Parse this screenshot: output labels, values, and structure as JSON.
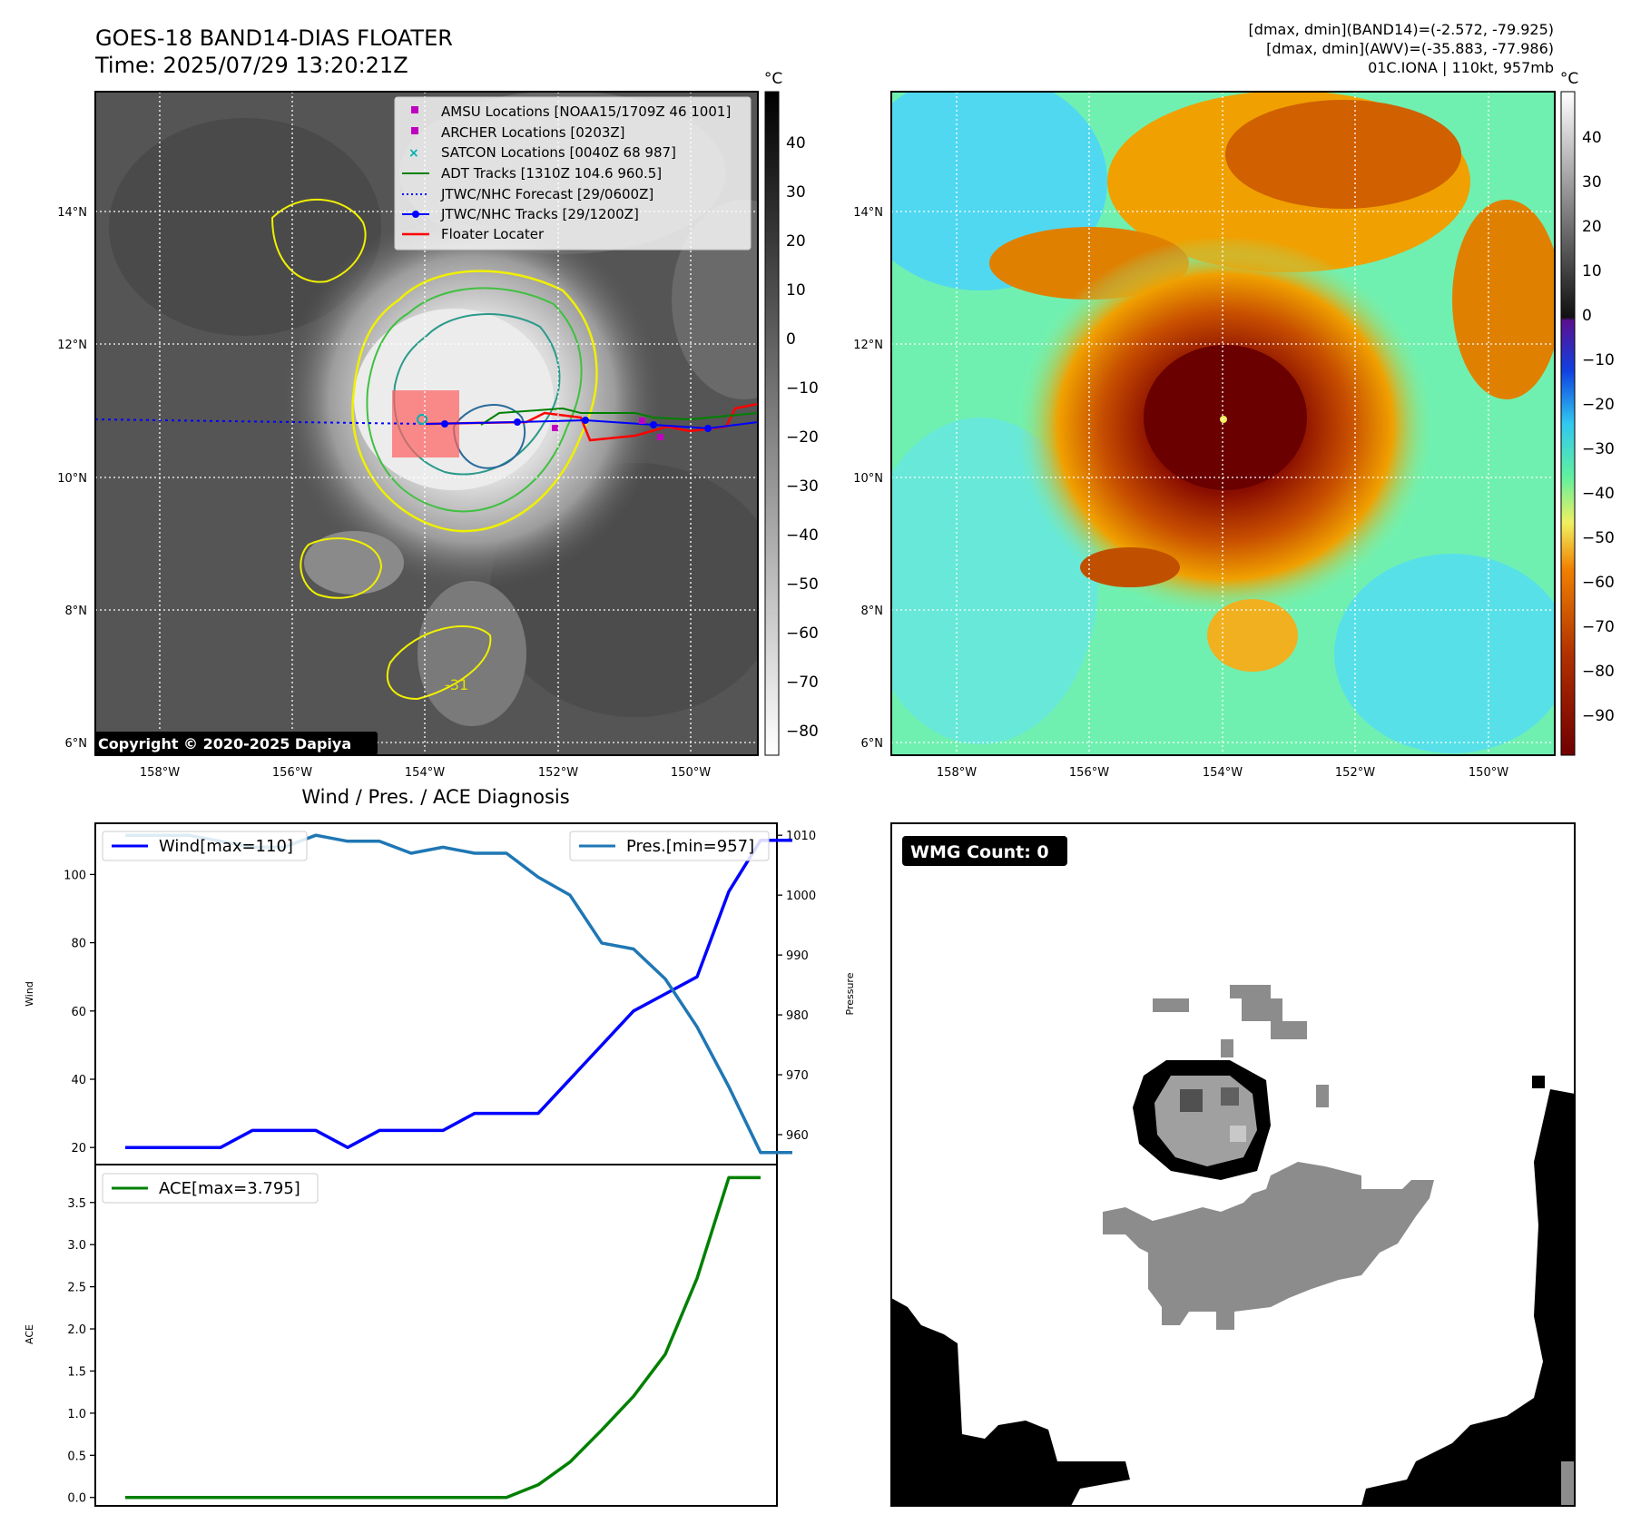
{
  "header": {
    "title_line1": "GOES-18 BAND14-DIAS FLOATER",
    "title_line2": "Time: 2025/07/29 13:20:21Z",
    "info_line1": "[dmax, dmin](BAND14)=(-2.572, -79.925)",
    "info_line2": "[dmax, dmin](AWV)=(-35.883, -77.986)",
    "info_line3": "01C.IONA | 110kt, 957mb"
  },
  "maps": {
    "lat_ticks": [
      "14°N",
      "12°N",
      "10°N",
      "8°N",
      "6°N"
    ],
    "lon_ticks": [
      "158°W",
      "156°W",
      "154°W",
      "152°W",
      "150°W"
    ],
    "copyright": "Copyright © 2020-2025 Dapiya",
    "contour_label": "-31",
    "colorbar_unit": "°C",
    "left_colorbar_ticks": [
      "40",
      "30",
      "20",
      "10",
      "0",
      "−10",
      "−20",
      "−30",
      "−40",
      "−50",
      "−60",
      "−70",
      "−80"
    ],
    "right_colorbar_ticks": [
      "40",
      "30",
      "20",
      "10",
      "0",
      "−10",
      "−20",
      "−30",
      "−40",
      "−50",
      "−60",
      "−70",
      "−80",
      "−90"
    ],
    "legend": {
      "amsu": "AMSU Locations [NOAA15/1709Z 46 1001]",
      "archer": "ARCHER Locations [0203Z]",
      "satcon": "SATCON Locations [0040Z 68 987]",
      "adt": "ADT Tracks [1310Z 104.6 960.5]",
      "forecast": "JTWC/NHC Forecast [29/0600Z]",
      "tracks": "JTWC/NHC Tracks [29/1200Z]",
      "floater": "Floater Locater"
    },
    "colors": {
      "amsu": "#c000c0",
      "satcon": "#00b0b0",
      "adt": "#008000",
      "forecast": "#0000ff",
      "tracks": "#0000ff",
      "floater": "#ff0000"
    }
  },
  "diagnosis": {
    "title": "Wind / Pres. / ACE Diagnosis",
    "wind_legend": "Wind[max=110]",
    "pres_legend": "Pres.[min=957]",
    "ace_legend": "ACE[max=3.795]",
    "wind_axis_label": "Wind",
    "pres_axis_label": "Pressure",
    "ace_axis_label": "ACE",
    "wind_ticks": [
      "100",
      "80",
      "60",
      "40",
      "20"
    ],
    "pres_ticks": [
      "1010",
      "1000",
      "990",
      "980",
      "970",
      "960"
    ],
    "ace_ticks": [
      "3.5",
      "3.0",
      "2.5",
      "2.0",
      "1.5",
      "1.0",
      "0.5",
      "0.0"
    ],
    "wind_color": "#0000ff",
    "pres_color": "#1f77b4",
    "ace_color": "#008000"
  },
  "wmg": {
    "label": "WMG Count: 0"
  },
  "chart_data": [
    {
      "type": "line",
      "x": [
        0,
        1,
        2,
        3,
        4,
        5,
        6,
        7,
        8,
        9,
        10,
        11,
        12,
        13,
        14,
        15,
        16,
        17,
        18,
        19,
        20,
        21
      ],
      "series": [
        {
          "name": "Wind[max=110]",
          "values": [
            20,
            20,
            20,
            20,
            25,
            25,
            25,
            20,
            25,
            25,
            25,
            30,
            30,
            30,
            40,
            50,
            60,
            65,
            70,
            95,
            110,
            110
          ]
        },
        {
          "name": "Pres.[min=957]",
          "values": [
            1010,
            1010,
            1010,
            1009,
            1008,
            1008,
            1010,
            1009,
            1009,
            1007,
            1008,
            1007,
            1007,
            1003,
            1000,
            992,
            991,
            986,
            978,
            968,
            957,
            957
          ]
        }
      ],
      "ylim": [
        15,
        115
      ],
      "y2lim": [
        955,
        1012
      ]
    },
    {
      "type": "line",
      "x": [
        0,
        1,
        2,
        3,
        4,
        5,
        6,
        7,
        8,
        9,
        10,
        11,
        12,
        13,
        14,
        15,
        16,
        17,
        18,
        19,
        20
      ],
      "series": [
        {
          "name": "ACE[max=3.795]",
          "values": [
            0,
            0,
            0,
            0,
            0,
            0,
            0,
            0,
            0,
            0,
            0,
            0,
            0,
            0.15,
            0.42,
            0.8,
            1.2,
            1.7,
            2.6,
            3.795,
            3.795
          ]
        }
      ],
      "ylim": [
        -0.1,
        3.95
      ]
    }
  ]
}
